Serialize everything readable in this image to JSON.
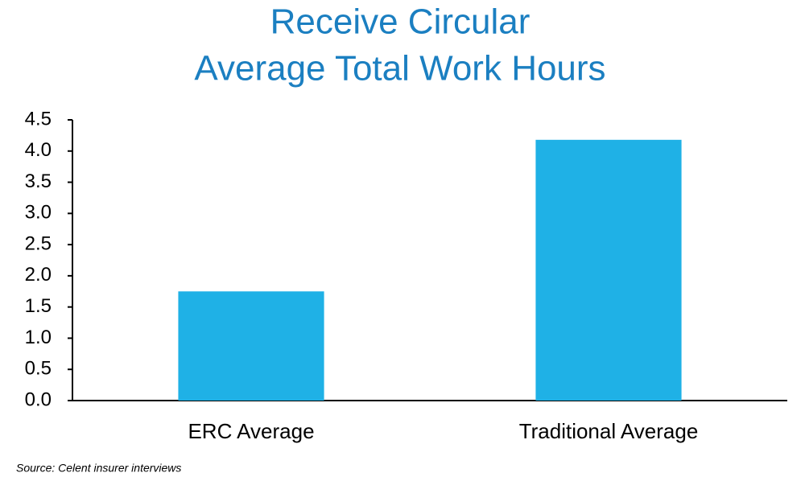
{
  "chart_data": {
    "type": "bar",
    "title": [
      "Receive Circular",
      "Average Total Work Hours"
    ],
    "categories": [
      "ERC Average",
      "Traditional Average"
    ],
    "values": [
      1.75,
      4.18
    ],
    "color": "#1fb1e6",
    "ylim": [
      0,
      4.5
    ],
    "yticks": [
      {
        "value": 0,
        "label": "0.0"
      },
      0.5,
      {
        "value": 1,
        "label": "1.0"
      },
      1.5,
      {
        "value": 2,
        "label": "2.0"
      },
      2.5,
      {
        "value": 3,
        "label": "3.0"
      },
      3.5,
      {
        "value": 4,
        "label": "4.0"
      },
      4.5
    ],
    "grid": false,
    "source": "Source: Celent insurer interviews"
  }
}
